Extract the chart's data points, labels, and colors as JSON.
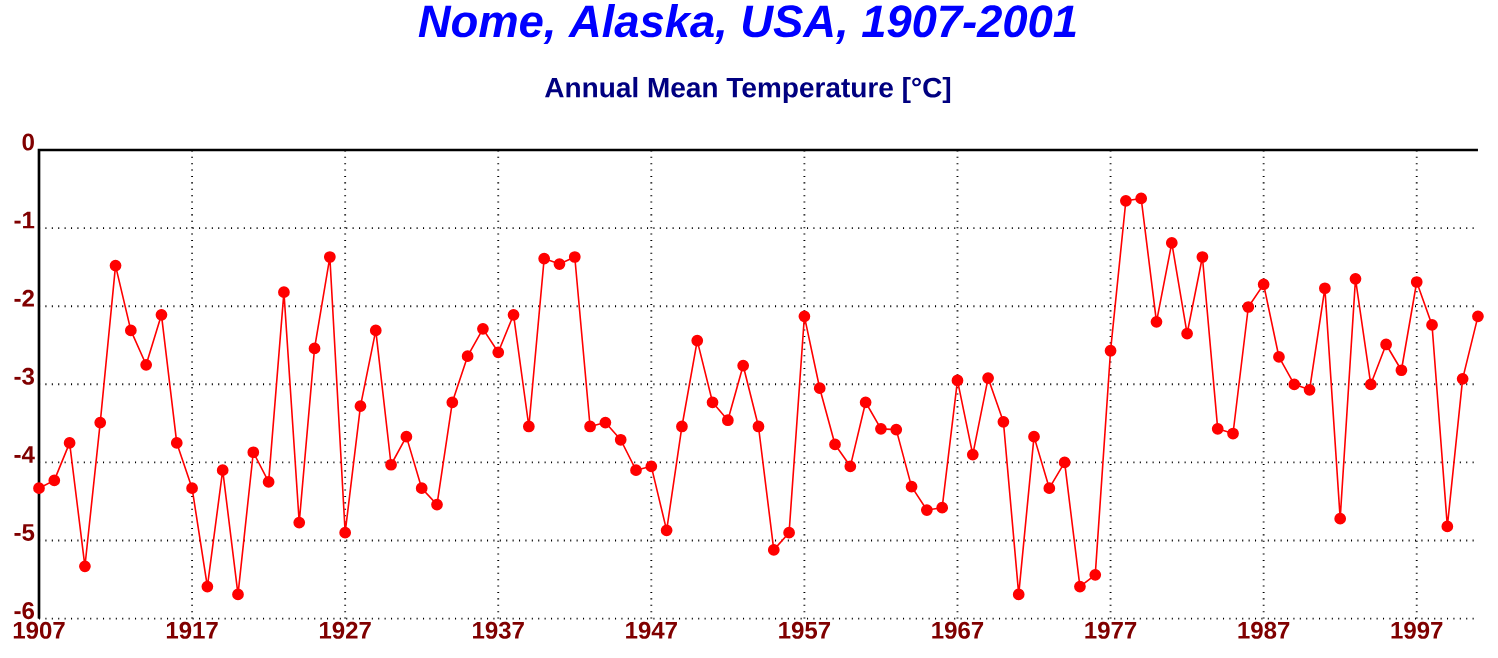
{
  "chart_data": {
    "type": "line",
    "title": "Nome, Alaska, USA, 1907-2001",
    "subtitle": "Annual Mean Temperature [°C]",
    "x": [
      1907,
      1908,
      1909,
      1910,
      1911,
      1912,
      1913,
      1914,
      1915,
      1916,
      1917,
      1918,
      1919,
      1920,
      1921,
      1922,
      1923,
      1924,
      1925,
      1926,
      1927,
      1928,
      1929,
      1930,
      1931,
      1932,
      1933,
      1934,
      1935,
      1936,
      1937,
      1938,
      1939,
      1940,
      1941,
      1942,
      1943,
      1944,
      1945,
      1946,
      1947,
      1948,
      1949,
      1950,
      1951,
      1952,
      1953,
      1954,
      1955,
      1956,
      1957,
      1958,
      1959,
      1960,
      1961,
      1962,
      1963,
      1964,
      1965,
      1966,
      1967,
      1968,
      1969,
      1970,
      1971,
      1972,
      1973,
      1974,
      1975,
      1976,
      1977,
      1978,
      1979,
      1980,
      1981,
      1982,
      1983,
      1984,
      1985,
      1986,
      1987,
      1988,
      1989,
      1990,
      1991,
      1992,
      1993,
      1994,
      1995,
      1996,
      1997,
      1998,
      1999,
      2000,
      2001
    ],
    "values": [
      -4.33,
      -4.23,
      -3.75,
      -5.33,
      -3.49,
      -1.48,
      -2.31,
      -2.75,
      -2.11,
      -3.75,
      -4.33,
      -5.59,
      -4.1,
      -5.69,
      -3.87,
      -4.25,
      -1.82,
      -4.77,
      -2.54,
      -1.37,
      -4.9,
      -3.28,
      -2.31,
      -4.03,
      -3.67,
      -4.33,
      -4.54,
      -3.23,
      -2.64,
      -2.29,
      -2.59,
      -2.11,
      -3.54,
      -1.39,
      -1.46,
      -1.37,
      -3.54,
      -3.49,
      -3.71,
      -4.1,
      -4.05,
      -4.87,
      -3.54,
      -2.44,
      -3.23,
      -3.46,
      -2.76,
      -3.54,
      -5.12,
      -4.9,
      -2.13,
      -3.05,
      -3.77,
      -4.05,
      -3.23,
      -3.57,
      -3.58,
      -4.31,
      -4.61,
      -4.58,
      -2.95,
      -3.9,
      -2.92,
      -3.48,
      -5.69,
      -3.67,
      -4.33,
      -4.0,
      -5.59,
      -5.44,
      -2.57,
      -0.65,
      -0.62,
      -2.2,
      -1.19,
      -2.35,
      -1.37,
      -3.57,
      -3.63,
      -2.01,
      -1.72,
      -2.65,
      -3.0,
      -3.07,
      -1.77,
      -4.72,
      -1.65,
      -3.0,
      -2.49,
      -2.82,
      -1.69,
      -2.24,
      -4.82,
      -2.93,
      -2.13
    ],
    "color": "#ff0000",
    "marker": "circle",
    "grid": true,
    "xlim": [
      1907,
      2001
    ],
    "ylim": [
      -6,
      0
    ],
    "xticks": [
      1907,
      1917,
      1927,
      1937,
      1947,
      1957,
      1967,
      1977,
      1987,
      1997
    ],
    "yticks": [
      -6,
      -5,
      -4,
      -3,
      -2,
      -1,
      0
    ]
  }
}
